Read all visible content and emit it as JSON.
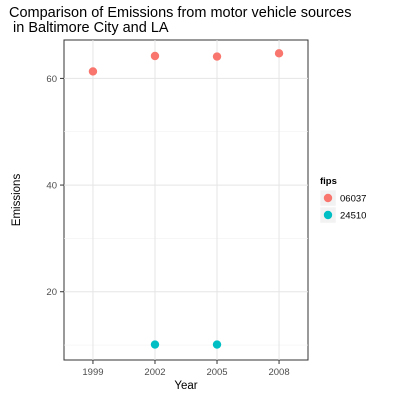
{
  "chart_data": {
    "type": "scatter",
    "title_lines": [
      "Comparison of Emissions from motor vehicle sources",
      " in Baltimore City and LA"
    ],
    "xlabel": "Year",
    "ylabel": "Emissions",
    "x_ticks": [
      1999,
      2002,
      2005,
      2008
    ],
    "y_ticks": [
      20,
      40,
      60
    ],
    "xlim": [
      1997.6,
      2009.4
    ],
    "ylim": [
      7.2,
      67.2
    ],
    "grid": true,
    "legend": {
      "title": "fips",
      "placement": "right"
    },
    "series": [
      {
        "name": "06037",
        "color": "#F8766D",
        "points": [
          {
            "x": 1999,
            "y": 61.3
          },
          {
            "x": 2002,
            "y": 64.2
          },
          {
            "x": 2005,
            "y": 64.1
          },
          {
            "x": 2008,
            "y": 64.7
          }
        ]
      },
      {
        "name": "24510",
        "color": "#00BFC4",
        "points": [
          {
            "x": 2002,
            "y": 10.1
          },
          {
            "x": 2005,
            "y": 10.1
          }
        ]
      }
    ]
  }
}
